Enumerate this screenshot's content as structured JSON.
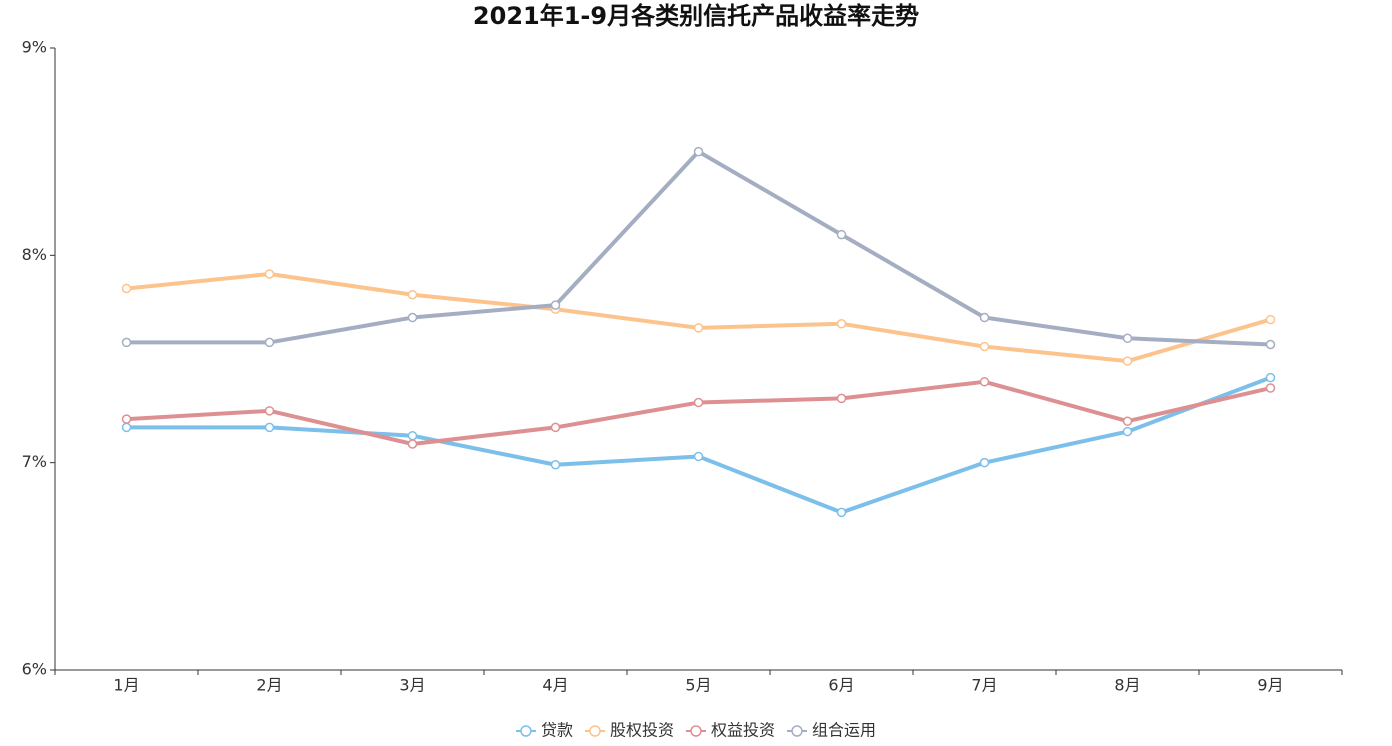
{
  "chart_data": {
    "type": "line",
    "title": "2021年1-9月各类别信托产品收益率走势",
    "categories": [
      "1月",
      "2月",
      "3月",
      "4月",
      "5月",
      "6月",
      "7月",
      "8月",
      "9月"
    ],
    "series": [
      {
        "name": "贷款",
        "color": "#7bbfea",
        "values": [
          7.17,
          7.17,
          7.13,
          6.99,
          7.03,
          6.76,
          7.0,
          7.15,
          7.41
        ]
      },
      {
        "name": "股权投资",
        "color": "#fdc38d",
        "values": [
          7.84,
          7.91,
          7.81,
          7.74,
          7.65,
          7.67,
          7.56,
          7.49,
          7.69
        ]
      },
      {
        "name": "权益投资",
        "color": "#dd9092",
        "values": [
          7.21,
          7.25,
          7.09,
          7.17,
          7.29,
          7.31,
          7.39,
          7.2,
          7.36
        ]
      },
      {
        "name": "组合运用",
        "color": "#a5adc2",
        "values": [
          7.58,
          7.58,
          7.7,
          7.76,
          8.5,
          8.1,
          7.7,
          7.6,
          7.57
        ]
      }
    ],
    "ylim": [
      6,
      9
    ],
    "yticks": [
      {
        "value": 6,
        "label": "6%"
      },
      {
        "value": 7,
        "label": "7%"
      },
      {
        "value": 8,
        "label": "8%"
      },
      {
        "value": 9,
        "label": "9%"
      }
    ],
    "grid": false,
    "legend": "bottom"
  }
}
